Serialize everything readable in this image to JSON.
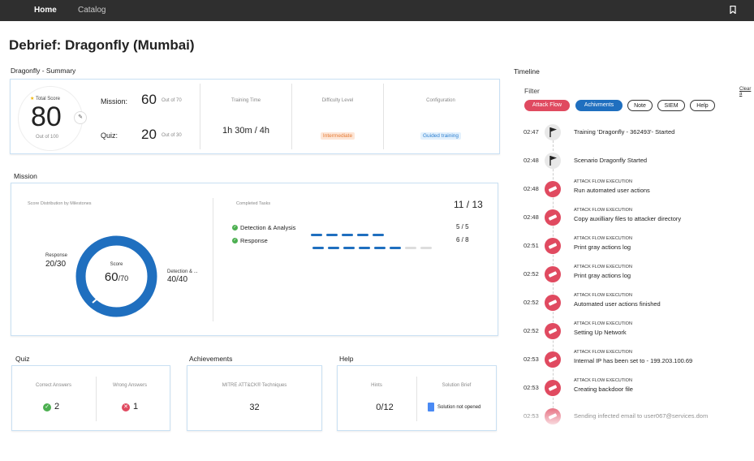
{
  "nav": {
    "home": "Home",
    "catalog": "Catalog"
  },
  "page_title": "Debrief: Dragonfly (Mumbai)",
  "summary": {
    "title": "Dragonfly - Summary",
    "total_score_label": "Total Score",
    "total_score": "80",
    "total_out_of": "Out of 100",
    "mission_label": "Mission:",
    "mission_score": "60",
    "mission_out_of": "Out of 70",
    "quiz_label": "Quiz:",
    "quiz_score": "20",
    "quiz_out_of": "Out of 30",
    "training_time_label": "Training Time",
    "training_time": "1h 30m / 4h",
    "difficulty_label": "Difficulty Level",
    "difficulty": "Intermediate",
    "configuration_label": "Configuration",
    "configuration": "Guided training"
  },
  "mission": {
    "title": "Mission",
    "dist_label": "Score Distribution by Milestones",
    "donut_center_label": "Score",
    "donut_score": "60",
    "donut_total": "/70",
    "response_label": "Response",
    "response_value": "20/30",
    "detection_label": "Detection & ...",
    "detection_value": "40/40",
    "completed_label": "Completed Tasks",
    "completed_value": "11 / 13",
    "tasks": [
      {
        "name": "Detection & Analysis",
        "done": 5,
        "total": 5,
        "value": "5 / 5"
      },
      {
        "name": "Response",
        "done": 6,
        "total": 8,
        "value": "6 / 8"
      }
    ],
    "colors": {
      "primary": "#1f6fbf",
      "secondary": "#dddddd"
    }
  },
  "quiz": {
    "title": "Quiz",
    "correct_label": "Correct Answers",
    "correct_value": "2",
    "wrong_label": "Wrong Answers",
    "wrong_value": "1"
  },
  "achievements": {
    "title": "Achievements",
    "mitre_label": "MITRE ATT&CK® Techniques",
    "mitre_value": "32"
  },
  "help": {
    "title": "Help",
    "hints_label": "Hints",
    "hints_value": "0/12",
    "brief_label": "Solution Brief",
    "brief_value": "Solution not opened"
  },
  "timeline": {
    "title": "Timeline",
    "filter_label": "Filter",
    "clear_label": "Clear a",
    "filters": [
      {
        "label": "Attack Flow",
        "active": true,
        "color": "#e04a60"
      },
      {
        "label": "Achivments",
        "active": true,
        "color": "#1f6fbf"
      },
      {
        "label": "Note",
        "active": false
      },
      {
        "label": "SIEM",
        "active": false
      },
      {
        "label": "Help",
        "active": false
      }
    ],
    "events": [
      {
        "time": "02:47",
        "type": "flag",
        "category": "",
        "text": "Training 'Dragonfly - 362493'- Started"
      },
      {
        "time": "02:48",
        "type": "flag",
        "category": "",
        "text": "Scenario Dragonfly Started"
      },
      {
        "time": "02:48",
        "type": "attack",
        "category": "ATTACK FLOW EXECUTION",
        "text": "Run automated user actions"
      },
      {
        "time": "02:48",
        "type": "attack",
        "category": "ATTACK FLOW EXECUTION",
        "text": "Copy auxilliary files to attacker directory"
      },
      {
        "time": "02:51",
        "type": "attack",
        "category": "ATTACK FLOW EXECUTION",
        "text": "Print gray actions log"
      },
      {
        "time": "02:52",
        "type": "attack",
        "category": "ATTACK FLOW EXECUTION",
        "text": "Print gray actions log"
      },
      {
        "time": "02:52",
        "type": "attack",
        "category": "ATTACK FLOW EXECUTION",
        "text": "Automated user actions finished"
      },
      {
        "time": "02:52",
        "type": "attack",
        "category": "ATTACK FLOW EXECUTION",
        "text": "Setting Up Network"
      },
      {
        "time": "02:53",
        "type": "attack",
        "category": "ATTACK FLOW EXECUTION",
        "text": "Internal IP has been set to - 199.203.100.69"
      },
      {
        "time": "02:53",
        "type": "attack",
        "category": "ATTACK FLOW EXECUTION",
        "text": "Creating backdoor file"
      },
      {
        "time": "02:53",
        "type": "attack",
        "category": "",
        "text": "Sending infected email to user067@services.dom"
      }
    ]
  }
}
